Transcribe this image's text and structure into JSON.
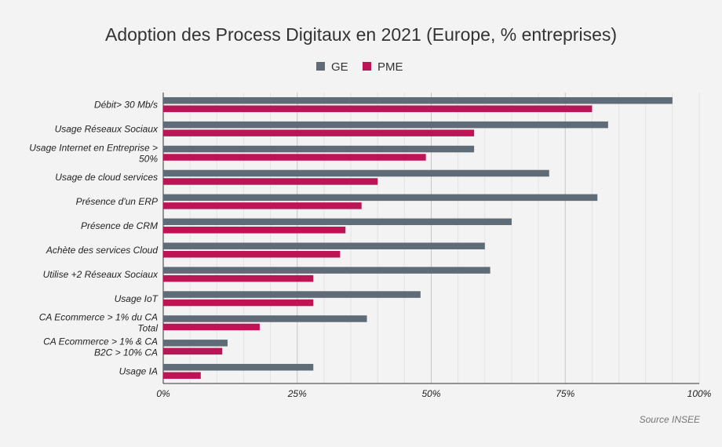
{
  "chart_data": {
    "type": "bar",
    "orientation": "horizontal",
    "title": "Adoption des Process Digitaux en 2021 (Europe, % entreprises)",
    "source": "Source INSEE",
    "legend_position": "top",
    "grid": true,
    "xlim": [
      0,
      100
    ],
    "ticks": [
      0,
      25,
      50,
      75,
      100
    ],
    "tick_labels": [
      "0%",
      "25%",
      "50%",
      "75%",
      "100%"
    ],
    "categories": [
      [
        "Débit> 30 Mb/s"
      ],
      [
        "Usage Réseaux Sociaux"
      ],
      [
        "Usage Internet en Entreprise >",
        "50%"
      ],
      [
        "Usage de cloud services"
      ],
      [
        "Présence d'un ERP"
      ],
      [
        "Présence de CRM"
      ],
      [
        "Achète des services Cloud"
      ],
      [
        "Utilise +2 Réseaux Sociaux"
      ],
      [
        "Usage IoT"
      ],
      [
        "CA Ecommerce > 1% du CA",
        "Total"
      ],
      [
        "CA Ecommerce > 1% & CA",
        "B2C > 10% CA"
      ],
      [
        "Usage IA"
      ]
    ],
    "series": [
      {
        "name": "GE",
        "color": "#5f6b77",
        "values": [
          95,
          83,
          58,
          72,
          81,
          65,
          60,
          61,
          48,
          38,
          12,
          28
        ]
      },
      {
        "name": "PME",
        "color": "#bb1556",
        "values": [
          80,
          58,
          49,
          40,
          37,
          34,
          33,
          28,
          28,
          18,
          11,
          7
        ]
      }
    ]
  }
}
